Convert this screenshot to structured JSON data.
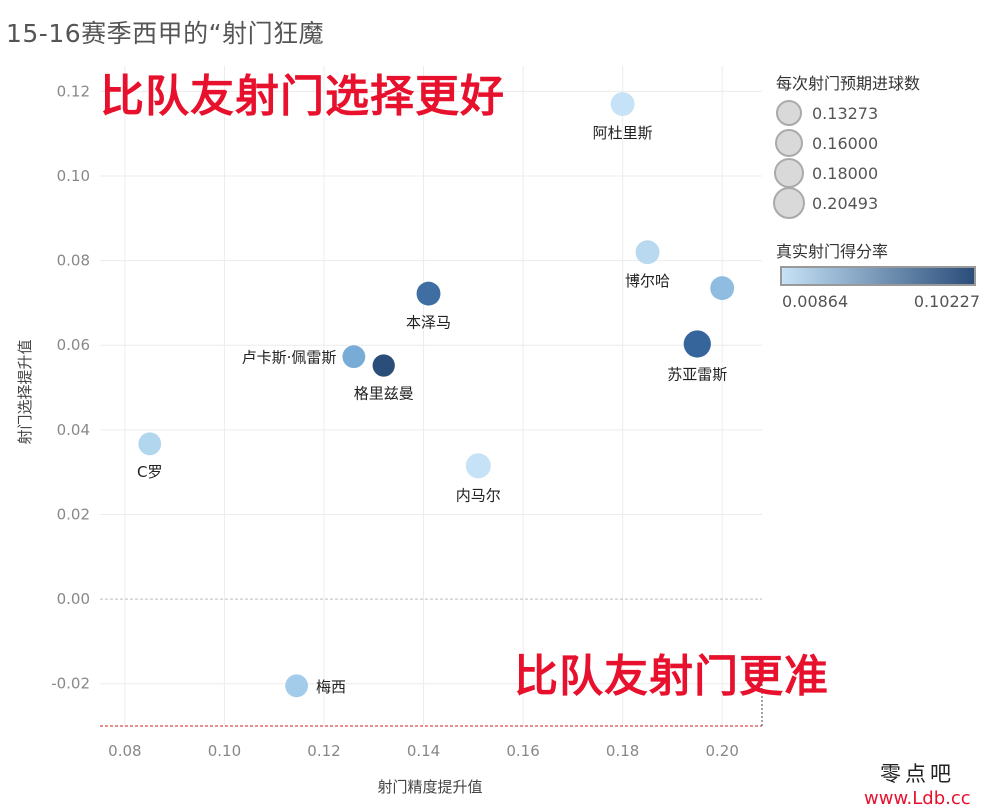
{
  "title": "15-16赛季西甲的“射门狂魔",
  "annotations": {
    "top": "比队友射门选择更好",
    "bottom": "比队友射门更准"
  },
  "legend": {
    "size_title": "每次射门预期进球数",
    "size_items": [
      "0.13273",
      "0.16000",
      "0.18000",
      "0.20493"
    ],
    "color_title": "真实射门得分率",
    "color_min": "0.00864",
    "color_max": "0.10227",
    "color_low_hex": "#c6e2f6",
    "color_high_hex": "#2a4d7a"
  },
  "watermark": {
    "cn": "零点吧",
    "url": "www.Ldb.cc"
  },
  "chart_data": {
    "type": "scatter",
    "xlabel": "射门精度提升值",
    "ylabel": "射门选择提升值",
    "xlim": [
      0.075,
      0.208
    ],
    "ylim": [
      -0.03,
      0.126
    ],
    "xticks": [
      "0.08",
      "0.10",
      "0.12",
      "0.14",
      "0.16",
      "0.18",
      "0.20"
    ],
    "yticks": [
      "-0.02",
      "0.00",
      "0.02",
      "0.04",
      "0.06",
      "0.08",
      "0.10",
      "0.12"
    ],
    "grid": true,
    "points": [
      {
        "label": "阿杜里斯",
        "x": 0.18,
        "y": 0.117,
        "color": "#c6e2f6",
        "size": 0.15,
        "label_pos": "below"
      },
      {
        "label": "博尔哈",
        "x": 0.185,
        "y": 0.082,
        "color": "#b8d9f0",
        "size": 0.15,
        "label_pos": "below"
      },
      {
        "label": "",
        "x": 0.2,
        "y": 0.0735,
        "color": "#8fbde1",
        "size": 0.15,
        "label_pos": "none"
      },
      {
        "label": "本泽马",
        "x": 0.141,
        "y": 0.0722,
        "color": "#3f6ea3",
        "size": 0.15,
        "label_pos": "below"
      },
      {
        "label": "苏亚雷斯",
        "x": 0.195,
        "y": 0.0603,
        "color": "#36659b",
        "size": 0.18,
        "label_pos": "below"
      },
      {
        "label": "卢卡斯·佩雷斯",
        "x": 0.126,
        "y": 0.0573,
        "color": "#78acd6",
        "size": 0.14,
        "label_pos": "left"
      },
      {
        "label": "格里兹曼",
        "x": 0.132,
        "y": 0.0552,
        "color": "#2a4d7a",
        "size": 0.135,
        "label_pos": "below"
      },
      {
        "label": "C罗",
        "x": 0.085,
        "y": 0.0367,
        "color": "#b3d6ef",
        "size": 0.14,
        "label_pos": "below"
      },
      {
        "label": "内马尔",
        "x": 0.151,
        "y": 0.0315,
        "color": "#c6e2f6",
        "size": 0.16,
        "label_pos": "below"
      },
      {
        "label": "梅西",
        "x": 0.1145,
        "y": -0.0205,
        "color": "#a3cbea",
        "size": 0.14,
        "label_pos": "right"
      }
    ]
  }
}
